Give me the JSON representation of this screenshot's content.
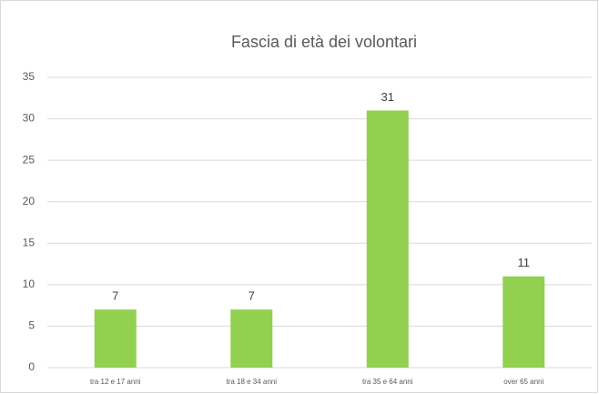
{
  "chart_data": {
    "type": "bar",
    "title": "Fascia di età dei volontari",
    "categories": [
      "tra 12 e 17 anni",
      "tra 18 e 34 anni",
      "tra 35 e 64 anni",
      "over 65 anni"
    ],
    "values": [
      7,
      7,
      31,
      11
    ],
    "color": "#92d050",
    "ylim": [
      0,
      35
    ],
    "yticks": [
      0,
      5,
      10,
      15,
      20,
      25,
      30,
      35
    ],
    "grid": true,
    "data_labels": true
  }
}
